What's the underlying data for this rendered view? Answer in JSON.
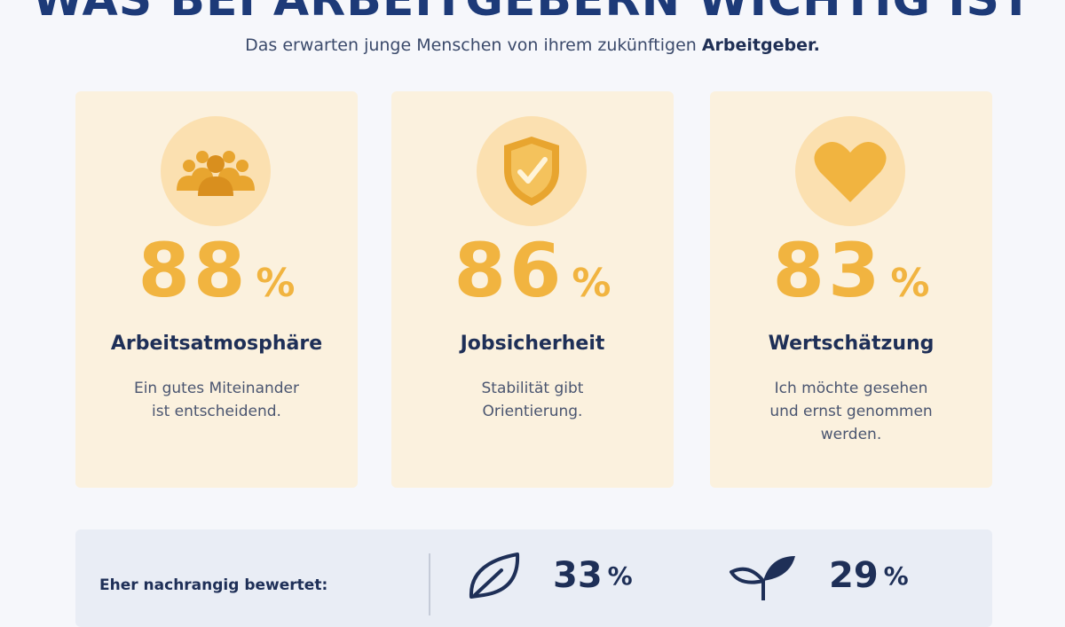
{
  "header": {
    "title": "WAS BEI ARBEITGEBERN WICHTIG IST",
    "subtitle_prefix": "Das erwarten junge Menschen von ihrem zukünftigen ",
    "subtitle_bold": "Arbeitgeber."
  },
  "cards": [
    {
      "icon": "group-people-icon",
      "value": "88",
      "unit": "%",
      "heading": "Arbeitsatmosphäre",
      "desc_line1": "Ein gutes Miteinander",
      "desc_line2": "ist entscheidend.",
      "desc_line3": ""
    },
    {
      "icon": "shield-check-icon",
      "value": "86",
      "unit": "%",
      "heading": "Jobsicherheit",
      "desc_line1": "Stabilität gibt",
      "desc_line2": "Orientierung.",
      "desc_line3": ""
    },
    {
      "icon": "heart-icon",
      "value": "83",
      "unit": "%",
      "heading": "Wertschätzung",
      "desc_line1": "Ich möchte gesehen",
      "desc_line2": "und ernst genommen",
      "desc_line3": "werden."
    }
  ],
  "secondary": {
    "label": "Eher nachrangig bewertet:",
    "items": [
      {
        "icon": "leaf-icon",
        "value": "33",
        "unit": "%"
      },
      {
        "icon": "plant-sprout-icon",
        "value": "29",
        "unit": "%"
      }
    ]
  },
  "colors": {
    "accent": "#f1b440",
    "navy": "#1e2f57",
    "card_bg": "#fbf1de",
    "icon_bg": "#fbe0b0",
    "bottom_bg": "#e9edf5"
  }
}
